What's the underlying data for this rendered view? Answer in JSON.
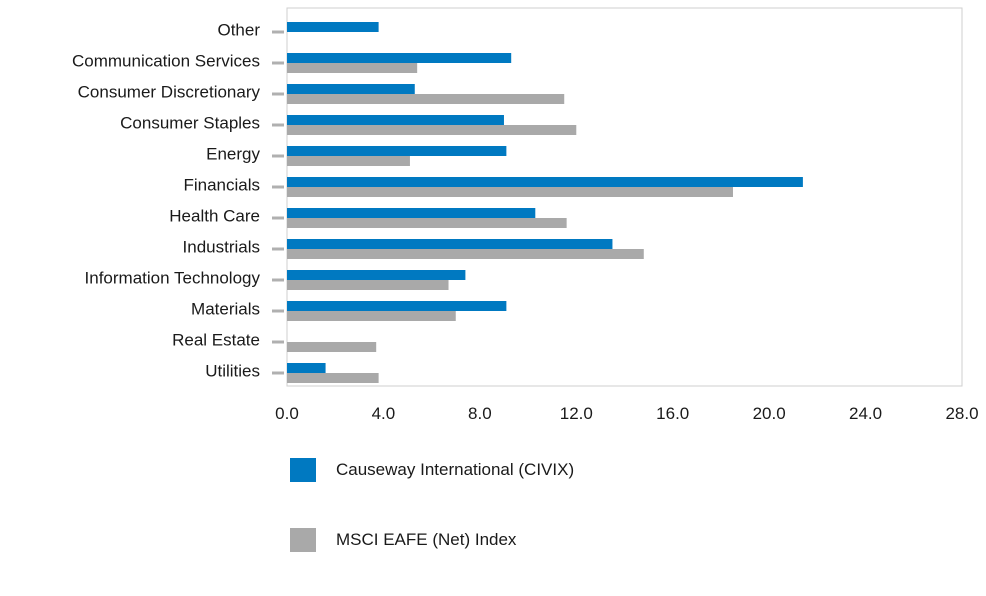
{
  "chart_data": {
    "type": "bar",
    "orientation": "horizontal",
    "categories": [
      "Other",
      "Communication Services",
      "Consumer Discretionary",
      "Consumer Staples",
      "Energy",
      "Financials",
      "Health Care",
      "Industrials",
      "Information Technology",
      "Materials",
      "Real Estate",
      "Utilities"
    ],
    "series": [
      {
        "name": "Causeway International (CIVIX)",
        "color": "#0079c1",
        "values": [
          3.8,
          9.3,
          5.3,
          9.0,
          9.1,
          21.4,
          10.3,
          13.5,
          7.4,
          9.1,
          0.0,
          1.6
        ]
      },
      {
        "name": "MSCI EAFE (Net) Index",
        "color": "#a9a9a9",
        "values": [
          0.0,
          5.4,
          11.5,
          12.0,
          5.1,
          18.5,
          11.6,
          14.8,
          6.7,
          7.0,
          3.7,
          3.8
        ]
      }
    ],
    "xlim": [
      0,
      28
    ],
    "x_ticks": [
      "0.0",
      "4.0",
      "8.0",
      "12.0",
      "16.0",
      "20.0",
      "24.0",
      "28.0"
    ],
    "grid": false,
    "legend_position": "bottom-left"
  }
}
